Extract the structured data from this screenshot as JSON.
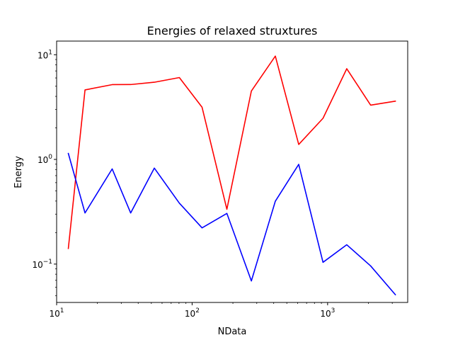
{
  "chart_data": {
    "type": "line",
    "title": "Energies of relaxed struxtures",
    "xlabel": "NData",
    "ylabel": "Energy",
    "xscale": "log",
    "yscale": "log",
    "xlim": [
      10,
      3900
    ],
    "ylim": [
      0.043,
      13.5
    ],
    "grid": false,
    "legend": null,
    "x_ticks": [
      {
        "value": 10,
        "base": "10",
        "exp": "1"
      },
      {
        "value": 100,
        "base": "10",
        "exp": "2"
      },
      {
        "value": 1000,
        "base": "10",
        "exp": "3"
      }
    ],
    "y_ticks": [
      {
        "value": 0.1,
        "base": "10",
        "exp": "−1"
      },
      {
        "value": 1,
        "base": "10",
        "exp": "0"
      },
      {
        "value": 10,
        "base": "10",
        "exp": "1"
      }
    ],
    "series": [
      {
        "color": "#ff0000",
        "x": [
          12.2,
          16.2,
          25.7,
          35.2,
          52.6,
          80.5,
          118.4,
          180.5,
          273.7,
          411.3,
          612.0,
          924.6,
          1384.6,
          2078.0,
          3162.0
        ],
        "y": [
          0.141,
          4.61,
          5.18,
          5.19,
          5.46,
          6.05,
          3.15,
          0.334,
          4.5,
          9.7,
          1.39,
          2.47,
          7.35,
          3.3,
          3.6
        ]
      },
      {
        "color": "#0000ff",
        "x": [
          12.2,
          16.2,
          25.7,
          35.2,
          52.6,
          80.5,
          118.4,
          180.5,
          273.7,
          411.3,
          612.0,
          924.6,
          1384.6,
          2078.0,
          3162.0
        ],
        "y": [
          1.14,
          0.308,
          0.811,
          0.308,
          0.826,
          0.382,
          0.222,
          0.305,
          0.069,
          0.399,
          0.897,
          0.104,
          0.153,
          0.096,
          0.051
        ]
      }
    ]
  }
}
